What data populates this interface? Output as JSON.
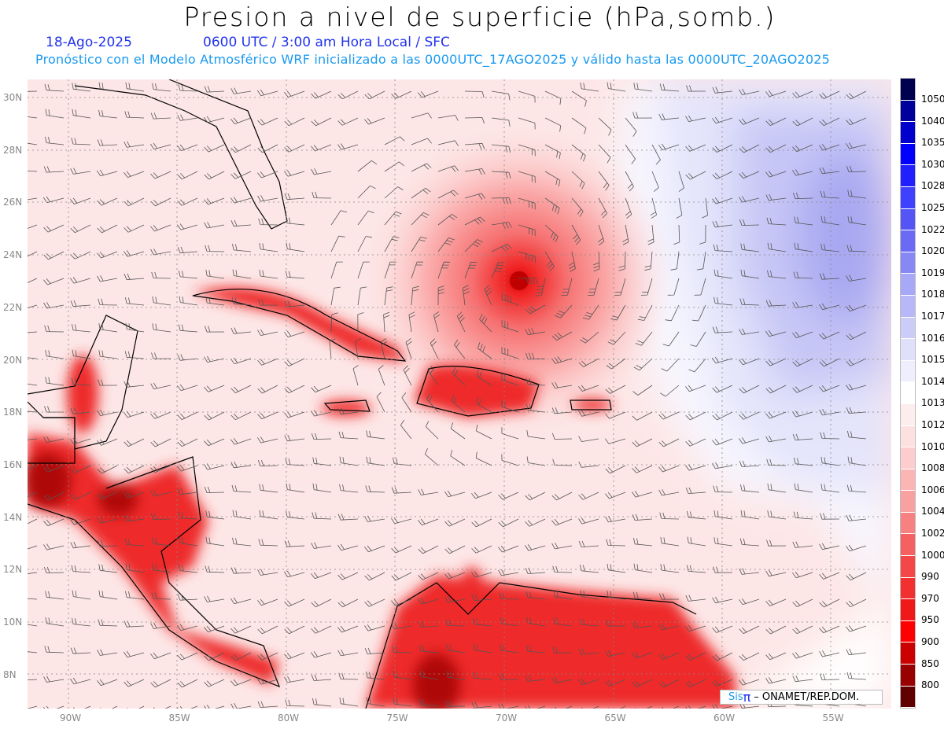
{
  "header": {
    "title": "Presion a nivel de superficie (hPa,somb.)",
    "date": "18-Ago-2025",
    "time": "0600 UTC / 3:00 am Hora Local / SFC",
    "forecast": "Pronóstico con el Modelo Atmosférico WRF inicializado a las 0000UTC_17AGO2025 y válido hasta las  0000UTC_20AGO2025"
  },
  "map": {
    "lon_ticks": [
      "90W",
      "85W",
      "80W",
      "75W",
      "70W",
      "65W",
      "60W",
      "55W"
    ],
    "lat_ticks": [
      "30N",
      "28N",
      "26N",
      "24N",
      "22N",
      "20N",
      "18N",
      "16N",
      "14N",
      "12N",
      "10N",
      "8N"
    ],
    "hurricane_center": {
      "lon": -69.2,
      "lat": 23.0
    }
  },
  "colorbar": {
    "labels": [
      "1050",
      "1040",
      "1035",
      "1030",
      "1028",
      "1025",
      "1022",
      "1020",
      "1019",
      "1018",
      "1017",
      "1016",
      "1015",
      "1014",
      "1013",
      "1012",
      "1010",
      "1008",
      "1006",
      "1004",
      "1002",
      "1000",
      "990",
      "970",
      "950",
      "900",
      "850",
      "800"
    ],
    "colors": [
      "#000050",
      "#00009a",
      "#0000cc",
      "#0000ff",
      "#2020ff",
      "#4040ff",
      "#5555f5",
      "#6a6af5",
      "#8888f5",
      "#a8a8f8",
      "#b8b8f8",
      "#ccccf8",
      "#e0e0fa",
      "#eeeefc",
      "#ffffff",
      "#fdeeee",
      "#fde0e0",
      "#fdcccc",
      "#fbb5b5",
      "#f9a0a0",
      "#f78080",
      "#f56060",
      "#f44848",
      "#f23030",
      "#f01818",
      "#ff0000",
      "#cc0000",
      "#990000",
      "#600000"
    ]
  },
  "credit": {
    "logo_a": "Sis",
    "logo_b": "π",
    "text": "– ONAMET/REP.DOM."
  }
}
